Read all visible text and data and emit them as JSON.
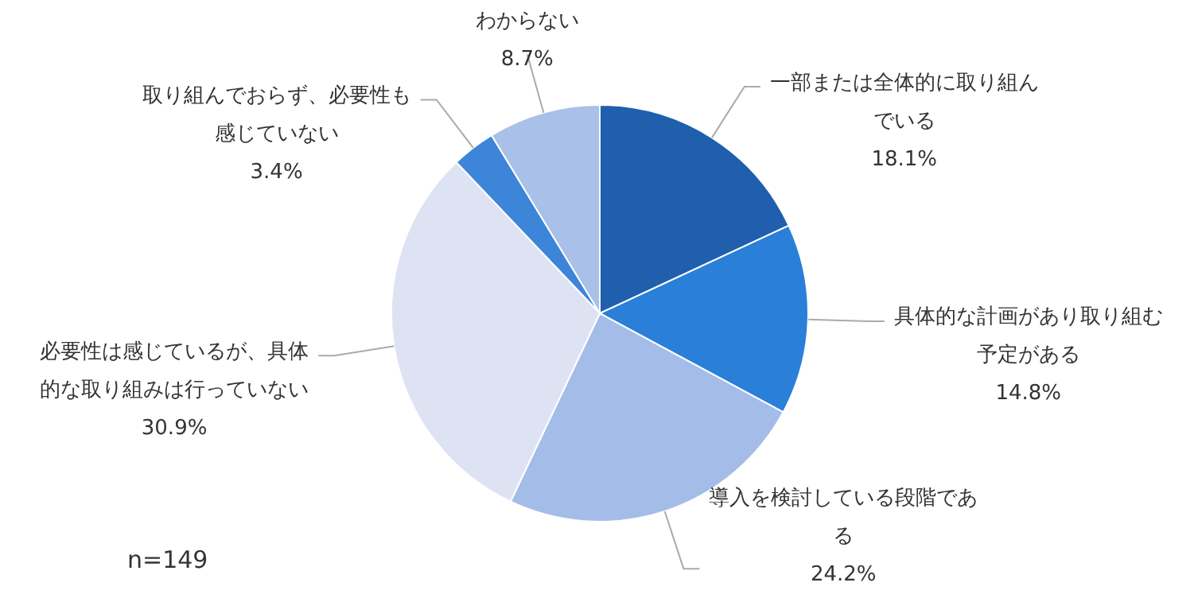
{
  "chart_data": {
    "type": "pie",
    "categories": [
      "一部または全体的に取り組んでいる",
      "具体的な計画があり取り組む予定がある",
      "導入を検討している段階である",
      "必要性は感じているが、具体的な取り組みは行っていない",
      "取り組んでおらず、必要性も感じていない",
      "わからない"
    ],
    "values": [
      18.1,
      14.8,
      24.2,
      30.9,
      3.4,
      8.7
    ],
    "colors": [
      "#1f5fad",
      "#2a7fd8",
      "#a4bde8",
      "#dde3f3",
      "#3d85d8",
      "#a9c0e8"
    ],
    "value_labels": [
      "18.1%",
      "14.8%",
      "24.2%",
      "30.9%",
      "3.4%",
      "8.7%"
    ],
    "annotations": [
      "n=149"
    ]
  }
}
